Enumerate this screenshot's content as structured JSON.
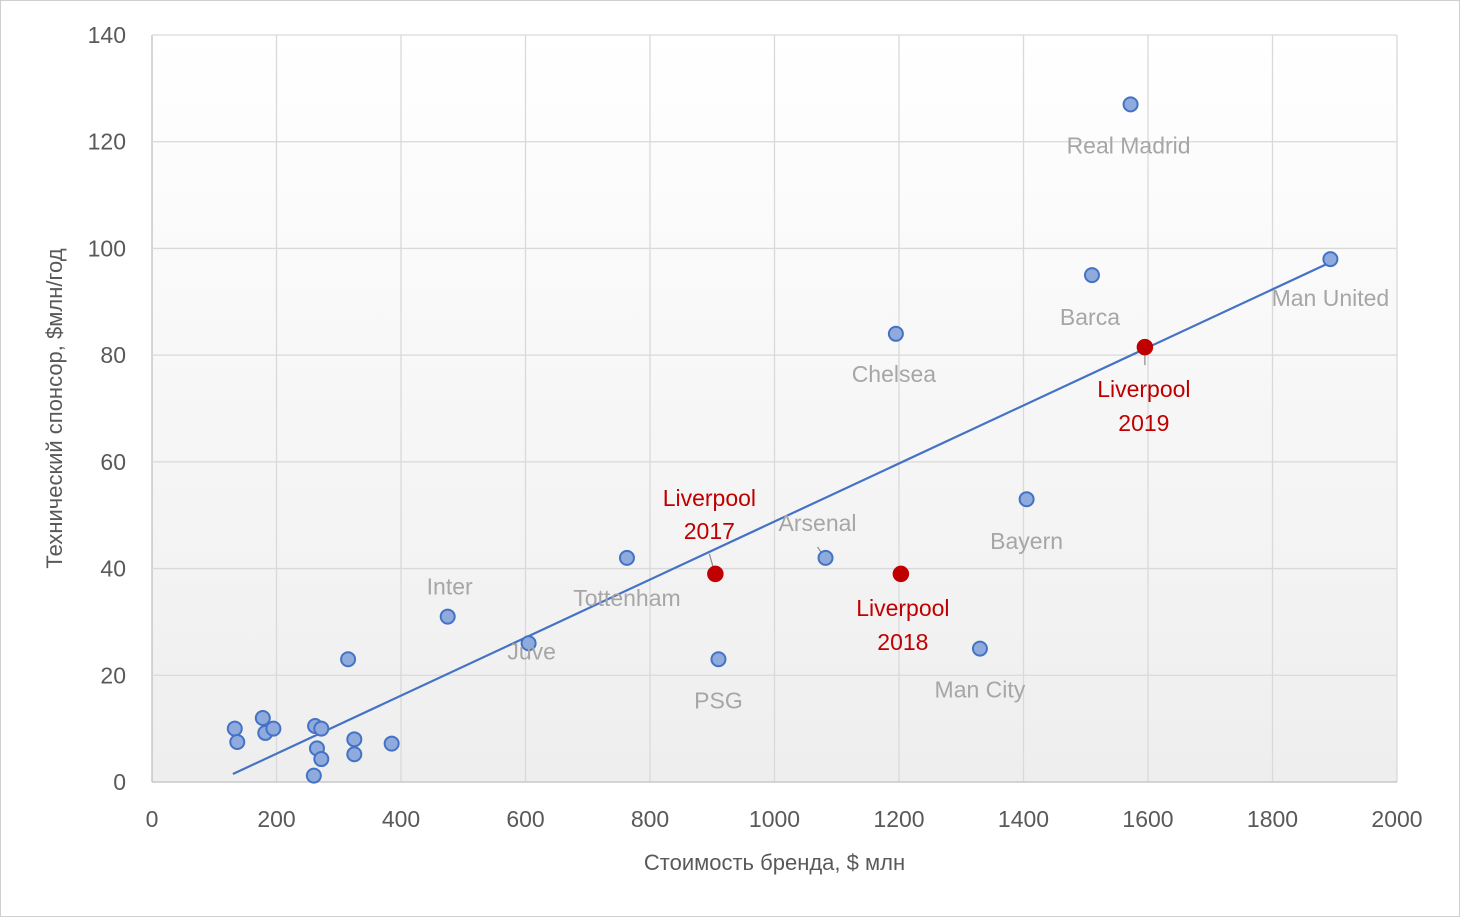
{
  "colors": {
    "point_fill": "#8faadc",
    "point_stroke": "#4472c4",
    "trend": "#4472c4",
    "highlight": "#c00000",
    "label_gray": "#a6a6a6",
    "leader": "#8c8c8c",
    "bg_top": "#ffffff",
    "bg_bottom": "#eeeeee"
  },
  "chart_data": {
    "type": "scatter",
    "title": "",
    "xlabel": "Стоимость бренда, $ млн",
    "ylabel": "Технический спонсор, $млн/год",
    "xlim": [
      0,
      2000
    ],
    "ylim": [
      0,
      140
    ],
    "xticks": [
      "0",
      "200",
      "400",
      "600",
      "800",
      "1000",
      "1200",
      "1400",
      "1600",
      "1800",
      "2000"
    ],
    "yticks": [
      "0",
      "20",
      "40",
      "60",
      "80",
      "100",
      "120",
      "140"
    ],
    "grid": true,
    "trendline": {
      "x": [
        130,
        1895
      ],
      "y": [
        1.5,
        97.5
      ]
    },
    "points": [
      {
        "x": 1572,
        "y": 127,
        "label": "Real Madrid"
      },
      {
        "x": 1510,
        "y": 95,
        "label": "Barca"
      },
      {
        "x": 1893,
        "y": 98,
        "label": "Man United"
      },
      {
        "x": 1195,
        "y": 84,
        "label": "Chelsea"
      },
      {
        "x": 1405,
        "y": 53,
        "label": "Bayern"
      },
      {
        "x": 1082,
        "y": 42,
        "label": "Arsenal"
      },
      {
        "x": 763,
        "y": 42,
        "label": "Tottenham"
      },
      {
        "x": 475,
        "y": 31,
        "label": "Inter"
      },
      {
        "x": 605,
        "y": 26,
        "label": "Juve"
      },
      {
        "x": 910,
        "y": 23,
        "label": "PSG"
      },
      {
        "x": 1330,
        "y": 25,
        "label": "Man City"
      },
      {
        "x": 315,
        "y": 23,
        "label": ""
      },
      {
        "x": 133,
        "y": 10,
        "label": ""
      },
      {
        "x": 137,
        "y": 7.5,
        "label": ""
      },
      {
        "x": 178,
        "y": 12,
        "label": ""
      },
      {
        "x": 182,
        "y": 9.2,
        "label": ""
      },
      {
        "x": 195,
        "y": 10,
        "label": ""
      },
      {
        "x": 262,
        "y": 10.5,
        "label": ""
      },
      {
        "x": 272,
        "y": 10,
        "label": ""
      },
      {
        "x": 265,
        "y": 6.3,
        "label": ""
      },
      {
        "x": 272,
        "y": 4.3,
        "label": ""
      },
      {
        "x": 260,
        "y": 1.2,
        "label": ""
      },
      {
        "x": 325,
        "y": 8,
        "label": ""
      },
      {
        "x": 325,
        "y": 5.2,
        "label": ""
      },
      {
        "x": 385,
        "y": 7.2,
        "label": ""
      }
    ],
    "highlight_points": [
      {
        "x": 905,
        "y": 39,
        "label_line1": "Liverpool",
        "label_line2": "2017"
      },
      {
        "x": 1203,
        "y": 39,
        "label_line1": "Liverpool",
        "label_line2": "2018"
      },
      {
        "x": 1595,
        "y": 81.5,
        "label_line1": "Liverpool",
        "label_line2": "2019"
      }
    ]
  }
}
